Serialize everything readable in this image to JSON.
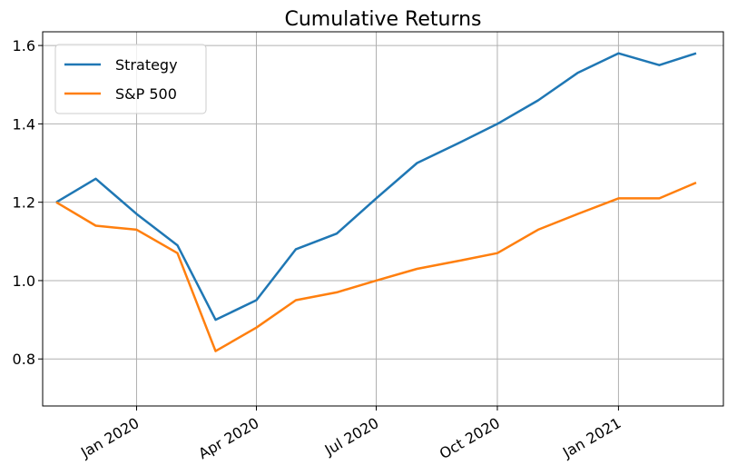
{
  "chart_data": {
    "type": "line",
    "title": "Cumulative Returns",
    "x": [
      "2019-11",
      "2019-12",
      "2020-01",
      "2020-02",
      "2020-03",
      "2020-04",
      "2020-05",
      "2020-06",
      "2020-07",
      "2020-08",
      "2020-09",
      "2020-10",
      "2020-11",
      "2020-12",
      "2021-01",
      "2021-02",
      "2021-03"
    ],
    "series": [
      {
        "name": "Strategy",
        "color": "#1f77b4",
        "values": [
          1.2,
          1.26,
          1.17,
          1.09,
          0.9,
          0.95,
          1.08,
          1.12,
          1.21,
          1.3,
          1.35,
          1.4,
          1.46,
          1.53,
          1.58,
          1.55,
          1.58
        ]
      },
      {
        "name": "S&P 500",
        "color": "#ff7f0e",
        "values": [
          1.2,
          1.14,
          1.13,
          1.07,
          0.82,
          0.88,
          0.95,
          0.97,
          1.0,
          1.03,
          1.05,
          1.07,
          1.13,
          1.17,
          1.21,
          1.21,
          1.25
        ]
      }
    ],
    "xlim": [
      "2019-11",
      "2021-03"
    ],
    "xticks": [
      {
        "value": "2020-01",
        "label": "Jan 2020"
      },
      {
        "value": "2020-04",
        "label": "Apr 2020"
      },
      {
        "value": "2020-07",
        "label": "Jul 2020"
      },
      {
        "value": "2020-10",
        "label": "Oct 2020"
      },
      {
        "value": "2021-01",
        "label": "Jan 2021"
      }
    ],
    "ylim": [
      0.68,
      1.635
    ],
    "yticks": [
      0.8,
      {
        "value": 1.0,
        "label": "1.0"
      },
      1.2,
      1.4,
      1.6
    ],
    "grid": true,
    "legend": "upper left"
  }
}
